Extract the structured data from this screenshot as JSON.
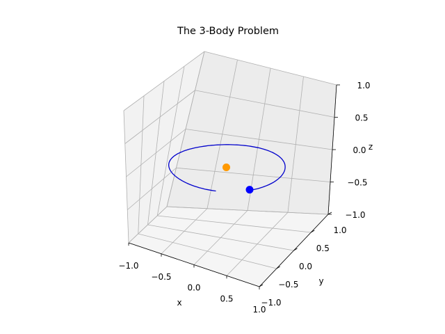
{
  "chart_data": {
    "type": "line",
    "projection": "3d",
    "title": "The 3-Body Problem",
    "xlabel": "x",
    "ylabel": "y",
    "zlabel": "z",
    "xlim": [
      -1.0,
      1.0
    ],
    "ylim": [
      -1.0,
      1.0
    ],
    "zlim": [
      -1.0,
      1.0
    ],
    "xticks": [
      "−1.0",
      "−0.5",
      "0.0",
      "0.5",
      "1.0"
    ],
    "yticks": [
      "−1.0",
      "−0.5",
      "0.0",
      "0.5",
      "1.0"
    ],
    "zticks": [
      "−1.0",
      "−0.5",
      "0.0",
      "0.5",
      "1.0"
    ],
    "grid": true,
    "colors": {
      "orbit": "#0000cc",
      "body": "#0000ff",
      "star": "#ff9900"
    },
    "orbit": {
      "radius": 0.75,
      "z": 0.0,
      "start_angle_deg": -40,
      "sweep_deg": 325
    },
    "moving_body": {
      "x": 0.56,
      "y": -0.47,
      "z": 0.0
    },
    "central_body": {
      "x": 0.0,
      "y": 0.0,
      "z": 0.0
    }
  }
}
